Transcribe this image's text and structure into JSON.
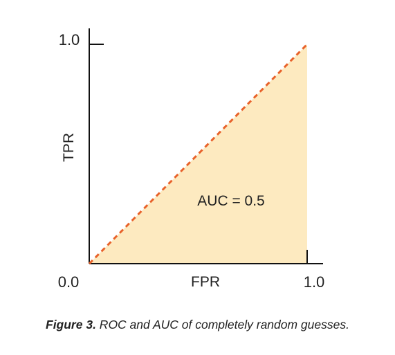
{
  "chart_data": {
    "type": "area",
    "title": "",
    "xlabel": "FPR",
    "ylabel": "TPR",
    "xlim": [
      0.0,
      1.0
    ],
    "ylim": [
      0.0,
      1.0
    ],
    "grid": false,
    "x_ticks": [
      {
        "value": 0.0,
        "label": "0.0"
      },
      {
        "value": 1.0,
        "label": "1.0"
      }
    ],
    "y_ticks": [
      {
        "value": 0.0,
        "label": "0.0"
      },
      {
        "value": 1.0,
        "label": "1.0"
      }
    ],
    "series": [
      {
        "x": [
          0.0,
          1.0
        ],
        "y": [
          0.0,
          1.0
        ],
        "style": "dashed",
        "color": "#e8622a",
        "fill_color": "#fdeac0"
      }
    ],
    "annotations": [
      {
        "text": "AUC = 0.5",
        "x": 0.48,
        "y": 0.3
      }
    ]
  },
  "caption": {
    "figure_number": "Figure 3.",
    "text": " ROC and AUC of completely random guesses."
  }
}
